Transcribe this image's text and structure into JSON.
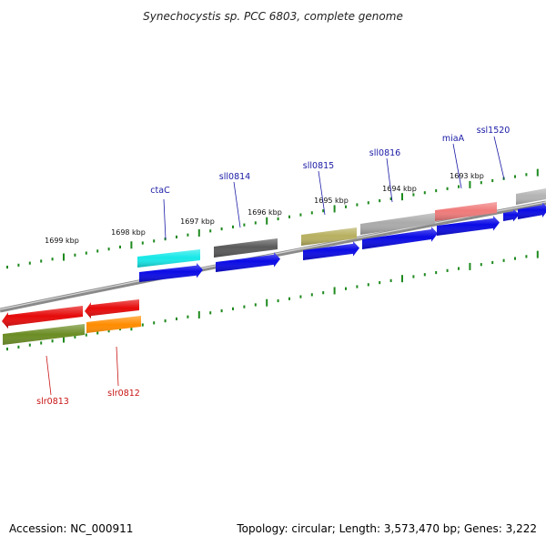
{
  "title": "Synechocystis sp. PCC 6803, complete genome",
  "footer": {
    "accession": "Accession: NC_000911",
    "info": "Topology: circular; Length: 3,573,470 bp; Genes: 3,222"
  },
  "colors": {
    "backbone": "#8a8a8a",
    "tick": "#1e8a1e",
    "cds": "#0a0ae6",
    "forward_label": "#1a1aa6",
    "reverse_label": "#c81414"
  },
  "kbp_ticks": [
    "1699 kbp",
    "1698 kbp",
    "1697 kbp",
    "1696 kbp",
    "1695 kbp",
    "1694 kbp",
    "1693 kbp"
  ],
  "forward_genes": [
    {
      "label": "ctaC",
      "color": "#18e8e8"
    },
    {
      "label": "sll0814",
      "color": "#5a5a5a"
    },
    {
      "label": "sll0815",
      "color": "#b8b060"
    },
    {
      "label": "sll0816",
      "color": "#aaaaaa"
    },
    {
      "label": "miaA",
      "color": "#f07a7a"
    },
    {
      "label": "ssl1520",
      "color": "#0a0ae6"
    },
    {
      "label": "",
      "color": "#b4b4b4"
    }
  ],
  "reverse_genes": [
    {
      "label": "slr0813",
      "color": "#e60a0a"
    },
    {
      "label": "slr0812",
      "color": "#e60a0a"
    }
  ]
}
